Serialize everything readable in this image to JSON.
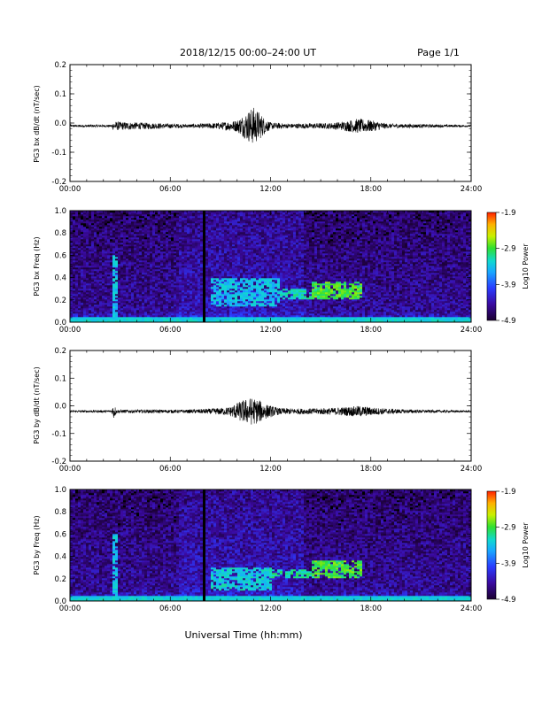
{
  "header": {
    "title": "2018/12/15  00:00–24:00 UT",
    "page": "Page 1/1"
  },
  "footer": {
    "xaxis_title": "Universal Time (hh:mm)"
  },
  "colors": {
    "trace": "#000000",
    "spectrogram_scale": [
      "#1a0030",
      "#3a0aa0",
      "#2a3cff",
      "#18a8ff",
      "#10d8d0",
      "#30e030",
      "#c8f000",
      "#ffb000",
      "#ff2000"
    ]
  },
  "chart_data": [
    {
      "type": "line",
      "ylabel": "PG3 bx dB/dt (nT/sec)",
      "ylim": [
        -0.2,
        0.2
      ],
      "yticks": [
        "0.2",
        "0.1",
        "0.0",
        "-0.1",
        "-0.2"
      ],
      "xticks": [
        "00:00",
        "06:00",
        "12:00",
        "18:00",
        "24:00"
      ],
      "x_hours": [
        0,
        2.5,
        2.6,
        7.0,
        8.0,
        9.0,
        10.0,
        10.5,
        10.8,
        11.0,
        11.3,
        11.6,
        12.0,
        13.0,
        15.5,
        16.3,
        17.2,
        18.0,
        19.0,
        24.0
      ],
      "envelope": [
        0.004,
        0.004,
        0.015,
        0.006,
        0.008,
        0.012,
        0.02,
        0.045,
        0.06,
        0.065,
        0.05,
        0.03,
        0.012,
        0.008,
        0.01,
        0.015,
        0.025,
        0.02,
        0.008,
        0.003
      ],
      "baseline": -0.01
    },
    {
      "type": "heatmap",
      "ylabel": "PG3 bx Freq (Hz)",
      "ylim": [
        0.0,
        1.0
      ],
      "yticks": [
        "1.0",
        "0.8",
        "0.6",
        "0.4",
        "0.2",
        "0.0"
      ],
      "xticks": [
        "00:00",
        "06:00",
        "12:00",
        "18:00",
        "24:00"
      ],
      "colorbar": {
        "label": "Log10 Power",
        "ticks": [
          "-1.9",
          "-2.9",
          "-3.9",
          "-4.9"
        ],
        "range": [
          -4.9,
          -1.9
        ]
      },
      "data_gap_hours": 8.0,
      "features": [
        {
          "t": [
            2.6,
            2.8
          ],
          "f": [
            0.0,
            0.6
          ],
          "level": -3.6
        },
        {
          "t": [
            8.5,
            12.5
          ],
          "f": [
            0.15,
            0.4
          ],
          "level": -3.6
        },
        {
          "t": [
            12.5,
            15.0
          ],
          "f": [
            0.2,
            0.3
          ],
          "level": -3.4
        },
        {
          "t": [
            14.5,
            17.5
          ],
          "f": [
            0.2,
            0.37
          ],
          "level": -3.0
        }
      ]
    },
    {
      "type": "line",
      "ylabel": "PG3 by dB/dt (nT/sec)",
      "ylim": [
        -0.2,
        0.2
      ],
      "yticks": [
        "0.2",
        "0.1",
        "0.0",
        "-0.1",
        "-0.2"
      ],
      "xticks": [
        "00:00",
        "06:00",
        "12:00",
        "18:00",
        "24:00"
      ],
      "x_hours": [
        0,
        2.5,
        2.6,
        2.8,
        7.0,
        8.5,
        9.5,
        10.3,
        10.8,
        11.2,
        11.8,
        12.5,
        14.0,
        15.5,
        16.5,
        17.3,
        18.5,
        20.0,
        24.0
      ],
      "envelope": [
        0.004,
        0.004,
        0.03,
        0.006,
        0.006,
        0.01,
        0.015,
        0.04,
        0.05,
        0.045,
        0.025,
        0.012,
        0.01,
        0.012,
        0.016,
        0.02,
        0.012,
        0.007,
        0.003
      ],
      "baseline": -0.02
    },
    {
      "type": "heatmap",
      "ylabel": "PG3 by Freq (Hz)",
      "ylim": [
        0.0,
        1.0
      ],
      "yticks": [
        "1.0",
        "0.8",
        "0.6",
        "0.4",
        "0.2",
        "0.0"
      ],
      "xticks": [
        "00:00",
        "06:00",
        "12:00",
        "18:00",
        "24:00"
      ],
      "colorbar": {
        "label": "Log10 Power",
        "ticks": [
          "-1.9",
          "-2.9",
          "-3.9",
          "-4.9"
        ],
        "range": [
          -4.9,
          -1.9
        ]
      },
      "data_gap_hours": 8.0,
      "features": [
        {
          "t": [
            2.6,
            2.8
          ],
          "f": [
            0.0,
            0.6
          ],
          "level": -3.6
        },
        {
          "t": [
            8.5,
            12.0
          ],
          "f": [
            0.1,
            0.3
          ],
          "level": -3.5
        },
        {
          "t": [
            12.0,
            15.0
          ],
          "f": [
            0.2,
            0.28
          ],
          "level": -3.3
        },
        {
          "t": [
            14.5,
            17.5
          ],
          "f": [
            0.2,
            0.37
          ],
          "level": -3.0
        }
      ]
    }
  ]
}
